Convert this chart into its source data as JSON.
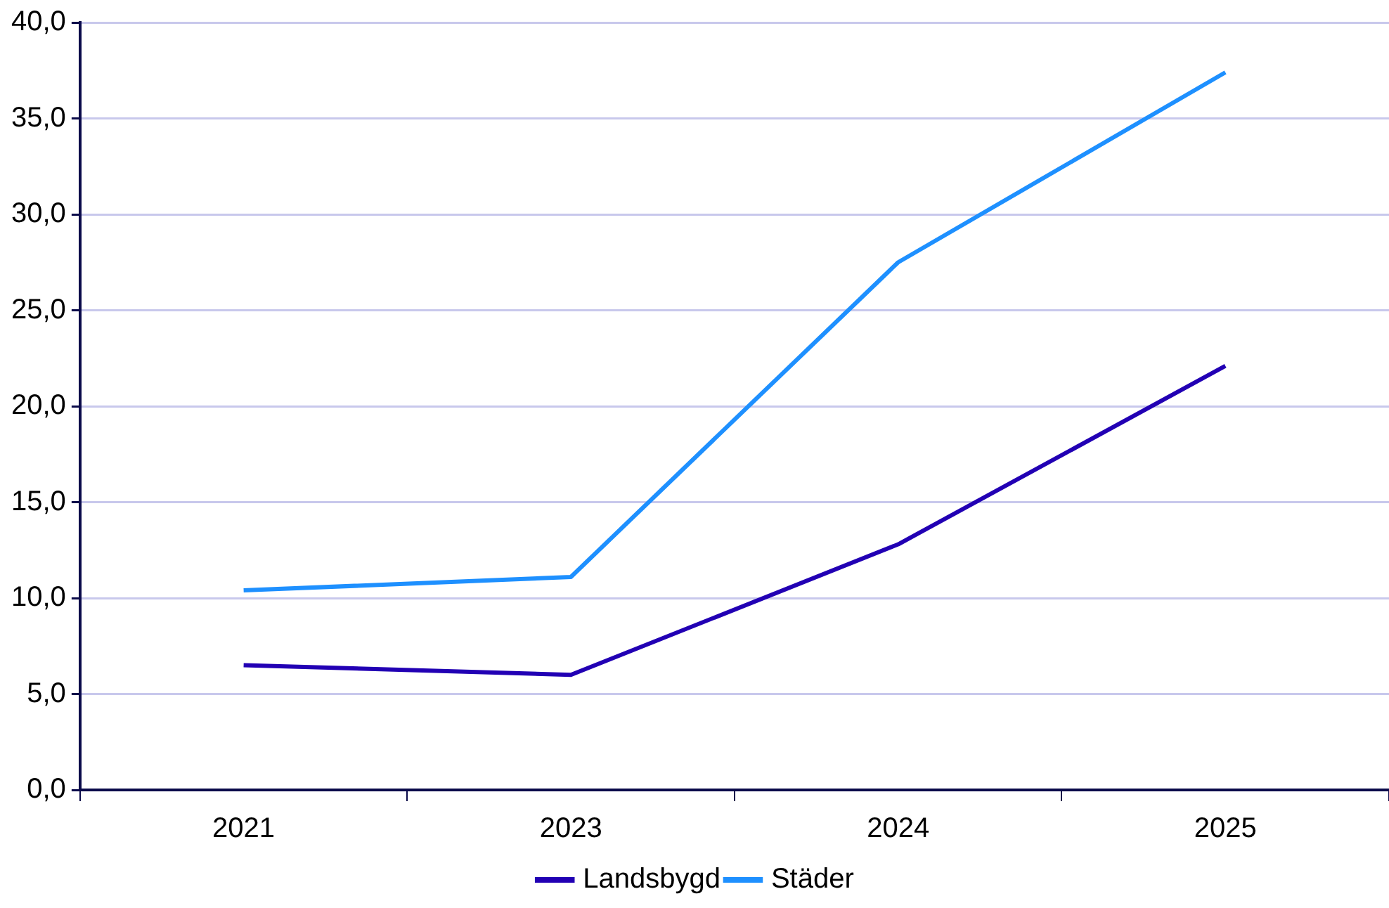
{
  "chart_data": {
    "type": "line",
    "categories": [
      "2021",
      "2023",
      "2024",
      "2025"
    ],
    "series": [
      {
        "name": "Landsbygd",
        "color": "#2200b4",
        "values": [
          6.5,
          6.0,
          12.8,
          22.1
        ]
      },
      {
        "name": "Städer",
        "color": "#1e90ff",
        "values": [
          10.4,
          11.1,
          27.5,
          37.4
        ]
      }
    ],
    "ylim": [
      0,
      40
    ],
    "yticks": [
      {
        "value": 0,
        "label": "0,0"
      },
      {
        "value": 5,
        "label": "5,0"
      },
      {
        "value": 10,
        "label": "10,0"
      },
      {
        "value": 15,
        "label": "15,0"
      },
      {
        "value": 20,
        "label": "20,0"
      },
      {
        "value": 25,
        "label": "25,0"
      },
      {
        "value": 30,
        "label": "30,0"
      },
      {
        "value": 35,
        "label": "35,0"
      },
      {
        "value": 40,
        "label": "40,0"
      }
    ],
    "grid": "y",
    "legend": "bottom",
    "marker": "none",
    "line_style": "solid"
  }
}
